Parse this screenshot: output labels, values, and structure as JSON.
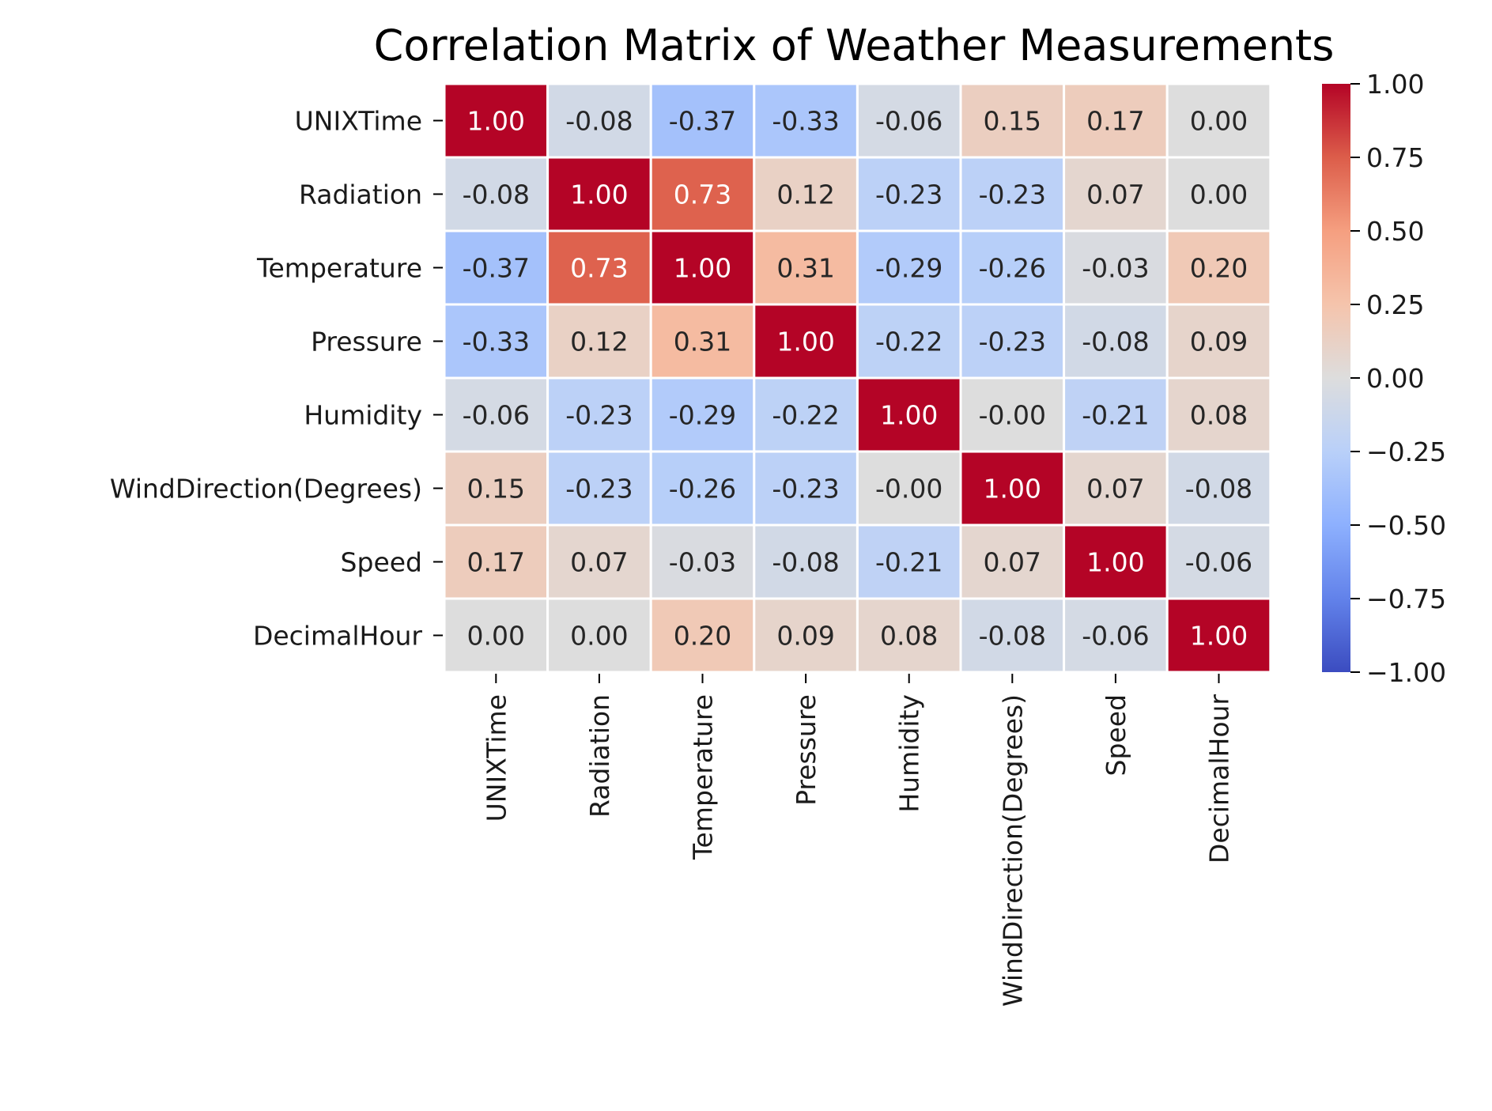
{
  "chart_data": {
    "type": "heatmap",
    "title": "Correlation Matrix of Weather Measurements",
    "rows": [
      "UNIXTime",
      "Radiation",
      "Temperature",
      "Pressure",
      "Humidity",
      "WindDirection(Degrees)",
      "Speed",
      "DecimalHour"
    ],
    "columns": [
      "UNIXTime",
      "Radiation",
      "Temperature",
      "Pressure",
      "Humidity",
      "WindDirection(Degrees)",
      "Speed",
      "DecimalHour"
    ],
    "values": [
      [
        1.0,
        -0.08,
        -0.37,
        -0.33,
        -0.06,
        0.15,
        0.17,
        0.0
      ],
      [
        -0.08,
        1.0,
        0.73,
        0.12,
        -0.23,
        -0.23,
        0.07,
        0.0
      ],
      [
        -0.37,
        0.73,
        1.0,
        0.31,
        -0.29,
        -0.26,
        -0.03,
        0.2
      ],
      [
        -0.33,
        0.12,
        0.31,
        1.0,
        -0.22,
        -0.23,
        -0.08,
        0.09
      ],
      [
        -0.06,
        -0.23,
        -0.29,
        -0.22,
        1.0,
        -0.0,
        -0.21,
        0.08
      ],
      [
        0.15,
        -0.23,
        -0.26,
        -0.23,
        -0.0,
        1.0,
        0.07,
        -0.08
      ],
      [
        0.17,
        0.07,
        -0.03,
        -0.08,
        -0.21,
        0.07,
        1.0,
        -0.06
      ],
      [
        0.0,
        0.0,
        0.2,
        0.09,
        0.08,
        -0.08,
        -0.06,
        1.0
      ]
    ],
    "cell_labels": [
      [
        "1.00",
        "-0.08",
        "-0.37",
        "-0.33",
        "-0.06",
        "0.15",
        "0.17",
        "0.00"
      ],
      [
        "-0.08",
        "1.00",
        "0.73",
        "0.12",
        "-0.23",
        "-0.23",
        "0.07",
        "0.00"
      ],
      [
        "-0.37",
        "0.73",
        "1.00",
        "0.31",
        "-0.29",
        "-0.26",
        "-0.03",
        "0.20"
      ],
      [
        "-0.33",
        "0.12",
        "0.31",
        "1.00",
        "-0.22",
        "-0.23",
        "-0.08",
        "0.09"
      ],
      [
        "-0.06",
        "-0.23",
        "-0.29",
        "-0.22",
        "1.00",
        "-0.00",
        "-0.21",
        "0.08"
      ],
      [
        "0.15",
        "-0.23",
        "-0.26",
        "-0.23",
        "-0.00",
        "1.00",
        "0.07",
        "-0.08"
      ],
      [
        "0.17",
        "0.07",
        "-0.03",
        "-0.08",
        "-0.21",
        "0.07",
        "1.00",
        "-0.06"
      ],
      [
        "0.00",
        "0.00",
        "0.20",
        "0.09",
        "0.08",
        "-0.08",
        "-0.06",
        "1.00"
      ]
    ],
    "colorbar": {
      "range": [
        -1.0,
        1.0
      ],
      "ticks": [
        1.0,
        0.75,
        0.5,
        0.25,
        0.0,
        -0.25,
        -0.5,
        -0.75,
        -1.0
      ],
      "tick_labels": [
        "1.00",
        "0.75",
        "0.50",
        "0.25",
        "0.00",
        "−0.25",
        "−0.50",
        "−0.75",
        "−1.00"
      ],
      "colormap": "coolwarm",
      "colors": {
        "low": "#3b4cc0",
        "mid": "#dddddd",
        "high": "#b40426"
      }
    },
    "cell_separator_color": "#ffffff",
    "legend_position": "right"
  }
}
